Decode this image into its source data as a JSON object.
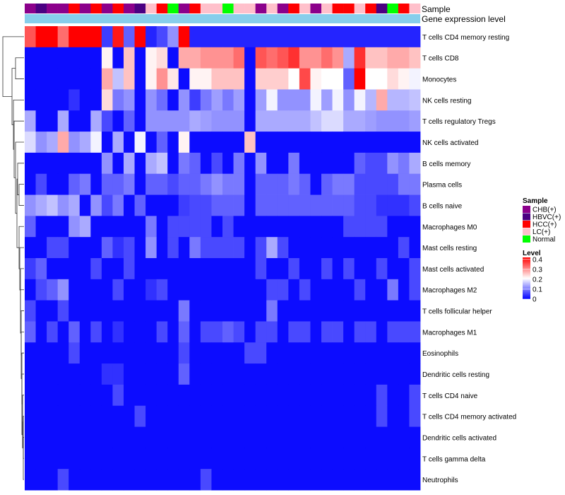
{
  "chart_data": {
    "type": "heatmap",
    "annotation_labels": {
      "sample": "Sample",
      "gene_expression": "Gene expression level"
    },
    "legend_sample": {
      "title": "Sample",
      "entries": [
        {
          "label": "CHB(+)",
          "color": "#8B008B"
        },
        {
          "label": "HBVC(+)",
          "color": "#4B0082"
        },
        {
          "label": "HCC(+)",
          "color": "#FF0000"
        },
        {
          "label": "LC(+)",
          "color": "#FFC0CB"
        },
        {
          "label": "Normal",
          "color": "#00FF00"
        }
      ]
    },
    "legend_level": {
      "title": "Level",
      "ticks": [
        "0.4",
        "0.3",
        "0.2",
        "0.1",
        "0"
      ],
      "range": [
        0,
        0.42
      ],
      "colors": {
        "low": "#0000FF",
        "mid": "#FFFFFF",
        "high": "#FF0000"
      }
    },
    "gene_expression_bar_color": "#87CEEB",
    "sample_groups": [
      "CHB(+)",
      "HBVC(+)",
      "CHB(+)",
      "CHB(+)",
      "HCC(+)",
      "CHB(+)",
      "HCC(+)",
      "CHB(+)",
      "HCC(+)",
      "CHB(+)",
      "HBVC(+)",
      "LC(+)",
      "HCC(+)",
      "Normal",
      "CHB(+)",
      "HCC(+)",
      "LC(+)",
      "LC(+)",
      "Normal",
      "LC(+)",
      "LC(+)",
      "CHB(+)",
      "LC(+)",
      "CHB(+)",
      "HCC(+)",
      "LC(+)",
      "CHB(+)",
      "LC(+)",
      "HCC(+)",
      "HCC(+)",
      "LC(+)",
      "HCC(+)",
      "HBVC(+)",
      "Normal",
      "HCC(+)",
      "LC(+)"
    ],
    "rows": [
      {
        "label": "T cells CD4 memory resting",
        "values": [
          0.35,
          0.42,
          0.42,
          0.33,
          0.42,
          0.42,
          0.42,
          0.05,
          0.4,
          0.08,
          0.42,
          0.03,
          0.06,
          0.12,
          0.42,
          0.03,
          0.03,
          0.03,
          0.03,
          0.03,
          0.03,
          0.03,
          0.03,
          0.03,
          0.03,
          0.03,
          0.03,
          0.03,
          0.03,
          0.03,
          0.03,
          0.03,
          0.03,
          0.03,
          0.03,
          0.03
        ]
      },
      {
        "label": "T cells CD8",
        "values": [
          0.01,
          0.01,
          0.01,
          0.01,
          0.01,
          0.01,
          0.01,
          0.22,
          0.01,
          0.26,
          0.01,
          0.22,
          0.24,
          0.01,
          0.28,
          0.28,
          0.3,
          0.3,
          0.3,
          0.33,
          0.01,
          0.35,
          0.33,
          0.35,
          0.38,
          0.3,
          0.3,
          0.33,
          0.3,
          0.14,
          0.38,
          0.26,
          0.26,
          0.28,
          0.28,
          0.26
        ]
      },
      {
        "label": "Monocytes",
        "values": [
          0.01,
          0.01,
          0.01,
          0.01,
          0.01,
          0.01,
          0.01,
          0.28,
          0.16,
          0.26,
          0.01,
          0.22,
          0.3,
          0.23,
          0.01,
          0.22,
          0.22,
          0.26,
          0.26,
          0.26,
          0.01,
          0.25,
          0.25,
          0.25,
          0.21,
          0.36,
          0.22,
          0.21,
          0.21,
          0.08,
          0.42,
          0.21,
          0.21,
          0.24,
          0.22,
          0.2
        ]
      },
      {
        "label": "NK cells resting",
        "values": [
          0.01,
          0.01,
          0.01,
          0.01,
          0.04,
          0.01,
          0.01,
          0.24,
          0.1,
          0.12,
          0.01,
          0.12,
          0.09,
          0.01,
          0.12,
          0.05,
          0.1,
          0.13,
          0.1,
          0.13,
          0.01,
          0.13,
          0.2,
          0.12,
          0.12,
          0.12,
          0.2,
          0.13,
          0.2,
          0.12,
          0.2,
          0.15,
          0.28,
          0.15,
          0.15,
          0.16
        ]
      },
      {
        "label": "T cells regulatory  Tregs",
        "values": [
          0.14,
          0.01,
          0.01,
          0.14,
          0.01,
          0.01,
          0.14,
          0.06,
          0.01,
          0.08,
          0.01,
          0.12,
          0.12,
          0.12,
          0.12,
          0.14,
          0.13,
          0.12,
          0.12,
          0.12,
          0.01,
          0.14,
          0.14,
          0.14,
          0.14,
          0.14,
          0.16,
          0.18,
          0.18,
          0.14,
          0.14,
          0.13,
          0.12,
          0.12,
          0.12,
          0.13
        ]
      },
      {
        "label": "NK cells activated",
        "values": [
          0.18,
          0.12,
          0.14,
          0.28,
          0.12,
          0.14,
          0.2,
          0.01,
          0.14,
          0.01,
          0.2,
          0.01,
          0.08,
          0.01,
          0.22,
          0.01,
          0.01,
          0.01,
          0.01,
          0.01,
          0.26,
          0.01,
          0.01,
          0.01,
          0.01,
          0.01,
          0.01,
          0.01,
          0.01,
          0.01,
          0.01,
          0.01,
          0.01,
          0.01,
          0.01,
          0.01
        ]
      },
      {
        "label": "B cells memory",
        "values": [
          0.01,
          0.01,
          0.01,
          0.01,
          0.01,
          0.01,
          0.01,
          0.12,
          0.01,
          0.14,
          0.01,
          0.14,
          0.16,
          0.01,
          0.1,
          0.08,
          0.01,
          0.06,
          0.01,
          0.1,
          0.01,
          0.12,
          0.01,
          0.01,
          0.1,
          0.01,
          0.01,
          0.01,
          0.01,
          0.01,
          0.08,
          0.06,
          0.06,
          0.12,
          0.1,
          0.14
        ]
      },
      {
        "label": "Plasma cells",
        "values": [
          0.01,
          0.06,
          0.01,
          0.01,
          0.08,
          0.1,
          0.01,
          0.08,
          0.08,
          0.1,
          0.01,
          0.08,
          0.08,
          0.06,
          0.08,
          0.08,
          0.1,
          0.12,
          0.1,
          0.1,
          0.01,
          0.08,
          0.08,
          0.08,
          0.1,
          0.08,
          0.01,
          0.08,
          0.1,
          0.1,
          0.06,
          0.06,
          0.06,
          0.06,
          0.1,
          0.1
        ]
      },
      {
        "label": "B cells naive",
        "values": [
          0.12,
          0.14,
          0.16,
          0.12,
          0.14,
          0.01,
          0.12,
          0.06,
          0.1,
          0.01,
          0.08,
          0.01,
          0.01,
          0.01,
          0.05,
          0.06,
          0.06,
          0.08,
          0.08,
          0.08,
          0.01,
          0.08,
          0.08,
          0.08,
          0.08,
          0.08,
          0.08,
          0.08,
          0.08,
          0.08,
          0.06,
          0.06,
          0.04,
          0.04,
          0.04,
          0.06
        ]
      },
      {
        "label": "Macrophages M0",
        "values": [
          0.08,
          0.01,
          0.01,
          0.01,
          0.12,
          0.14,
          0.01,
          0.01,
          0.01,
          0.01,
          0.01,
          0.1,
          0.01,
          0.06,
          0.06,
          0.06,
          0.06,
          0.01,
          0.06,
          0.01,
          0.01,
          0.01,
          0.01,
          0.01,
          0.01,
          0.01,
          0.01,
          0.01,
          0.01,
          0.06,
          0.06,
          0.06,
          0.06,
          0.01,
          0.01,
          0.01
        ]
      },
      {
        "label": "Mast cells resting",
        "values": [
          0.01,
          0.01,
          0.06,
          0.06,
          0.01,
          0.01,
          0.01,
          0.08,
          0.04,
          0.06,
          0.01,
          0.12,
          0.01,
          0.06,
          0.01,
          0.1,
          0.06,
          0.06,
          0.06,
          0.06,
          0.01,
          0.06,
          0.14,
          0.06,
          0.01,
          0.01,
          0.01,
          0.01,
          0.01,
          0.01,
          0.01,
          0.01,
          0.01,
          0.01,
          0.06,
          0.01
        ]
      },
      {
        "label": "Mast cells activated",
        "values": [
          0.05,
          0.08,
          0.01,
          0.01,
          0.01,
          0.01,
          0.06,
          0.01,
          0.01,
          0.06,
          0.01,
          0.01,
          0.01,
          0.01,
          0.01,
          0.01,
          0.01,
          0.01,
          0.01,
          0.01,
          0.01,
          0.06,
          0.01,
          0.01,
          0.06,
          0.01,
          0.01,
          0.06,
          0.01,
          0.06,
          0.01,
          0.01,
          0.06,
          0.01,
          0.01,
          0.06
        ]
      },
      {
        "label": "Macrophages M2",
        "values": [
          0.01,
          0.06,
          0.08,
          0.12,
          0.01,
          0.01,
          0.01,
          0.01,
          0.06,
          0.01,
          0.01,
          0.04,
          0.06,
          0.01,
          0.01,
          0.01,
          0.01,
          0.01,
          0.01,
          0.01,
          0.01,
          0.01,
          0.06,
          0.06,
          0.01,
          0.06,
          0.01,
          0.01,
          0.01,
          0.01,
          0.06,
          0.01,
          0.01,
          0.1,
          0.01,
          0.06
        ]
      },
      {
        "label": "T cells follicular helper",
        "values": [
          0.06,
          0.01,
          0.01,
          0.06,
          0.01,
          0.01,
          0.01,
          0.01,
          0.01,
          0.01,
          0.01,
          0.01,
          0.01,
          0.01,
          0.1,
          0.01,
          0.01,
          0.01,
          0.01,
          0.01,
          0.01,
          0.01,
          0.1,
          0.01,
          0.01,
          0.01,
          0.01,
          0.01,
          0.01,
          0.01,
          0.01,
          0.01,
          0.01,
          0.01,
          0.01,
          0.01
        ]
      },
      {
        "label": "Macrophages M1",
        "values": [
          0.08,
          0.01,
          0.06,
          0.01,
          0.08,
          0.01,
          0.06,
          0.01,
          0.04,
          0.01,
          0.01,
          0.01,
          0.06,
          0.01,
          0.08,
          0.01,
          0.06,
          0.06,
          0.08,
          0.06,
          0.01,
          0.06,
          0.06,
          0.01,
          0.06,
          0.06,
          0.01,
          0.06,
          0.06,
          0.01,
          0.06,
          0.06,
          0.01,
          0.06,
          0.06,
          0.06
        ]
      },
      {
        "label": "Eosinophils",
        "values": [
          0.01,
          0.01,
          0.01,
          0.01,
          0.06,
          0.01,
          0.01,
          0.01,
          0.01,
          0.01,
          0.01,
          0.01,
          0.01,
          0.01,
          0.06,
          0.01,
          0.01,
          0.01,
          0.01,
          0.01,
          0.06,
          0.06,
          0.01,
          0.01,
          0.01,
          0.01,
          0.01,
          0.01,
          0.01,
          0.01,
          0.01,
          0.01,
          0.01,
          0.01,
          0.01,
          0.01
        ]
      },
      {
        "label": "Dendritic cells resting",
        "values": [
          0.01,
          0.01,
          0.01,
          0.01,
          0.01,
          0.01,
          0.01,
          0.04,
          0.04,
          0.01,
          0.01,
          0.01,
          0.01,
          0.01,
          0.08,
          0.01,
          0.01,
          0.01,
          0.01,
          0.01,
          0.01,
          0.01,
          0.01,
          0.01,
          0.01,
          0.01,
          0.01,
          0.01,
          0.01,
          0.01,
          0.01,
          0.01,
          0.01,
          0.01,
          0.01,
          0.01
        ]
      },
      {
        "label": "T cells CD4 naive",
        "values": [
          0.01,
          0.01,
          0.01,
          0.01,
          0.01,
          0.01,
          0.01,
          0.01,
          0.06,
          0.01,
          0.01,
          0.01,
          0.01,
          0.01,
          0.01,
          0.01,
          0.01,
          0.01,
          0.01,
          0.01,
          0.01,
          0.01,
          0.01,
          0.01,
          0.01,
          0.01,
          0.01,
          0.01,
          0.01,
          0.01,
          0.01,
          0.01,
          0.06,
          0.01,
          0.01,
          0.06
        ]
      },
      {
        "label": "T cells CD4 memory activated",
        "values": [
          0.01,
          0.01,
          0.01,
          0.01,
          0.01,
          0.01,
          0.01,
          0.01,
          0.01,
          0.01,
          0.06,
          0.01,
          0.01,
          0.01,
          0.01,
          0.01,
          0.01,
          0.01,
          0.01,
          0.01,
          0.01,
          0.01,
          0.01,
          0.01,
          0.01,
          0.01,
          0.01,
          0.01,
          0.01,
          0.01,
          0.01,
          0.01,
          0.06,
          0.01,
          0.01,
          0.06
        ]
      },
      {
        "label": "Dendritic cells activated",
        "values": [
          0.01,
          0.01,
          0.01,
          0.01,
          0.01,
          0.01,
          0.01,
          0.01,
          0.01,
          0.01,
          0.01,
          0.01,
          0.01,
          0.01,
          0.01,
          0.01,
          0.01,
          0.01,
          0.01,
          0.01,
          0.01,
          0.01,
          0.01,
          0.01,
          0.01,
          0.01,
          0.01,
          0.01,
          0.01,
          0.01,
          0.01,
          0.01,
          0.01,
          0.01,
          0.01,
          0.01
        ]
      },
      {
        "label": "T cells gamma delta",
        "values": [
          0.01,
          0.01,
          0.01,
          0.01,
          0.01,
          0.01,
          0.01,
          0.01,
          0.01,
          0.01,
          0.01,
          0.01,
          0.01,
          0.01,
          0.01,
          0.01,
          0.01,
          0.01,
          0.01,
          0.01,
          0.01,
          0.01,
          0.01,
          0.01,
          0.01,
          0.01,
          0.01,
          0.01,
          0.01,
          0.01,
          0.01,
          0.01,
          0.01,
          0.01,
          0.01,
          0.01
        ]
      },
      {
        "label": "Neutrophils",
        "values": [
          0.01,
          0.01,
          0.01,
          0.06,
          0.01,
          0.01,
          0.01,
          0.01,
          0.01,
          0.01,
          0.01,
          0.01,
          0.01,
          0.01,
          0.01,
          0.01,
          0.06,
          0.01,
          0.01,
          0.01,
          0.01,
          0.01,
          0.01,
          0.01,
          0.01,
          0.01,
          0.01,
          0.01,
          0.01,
          0.01,
          0.01,
          0.01,
          0.01,
          0.01,
          0.01,
          0.01
        ]
      }
    ]
  }
}
